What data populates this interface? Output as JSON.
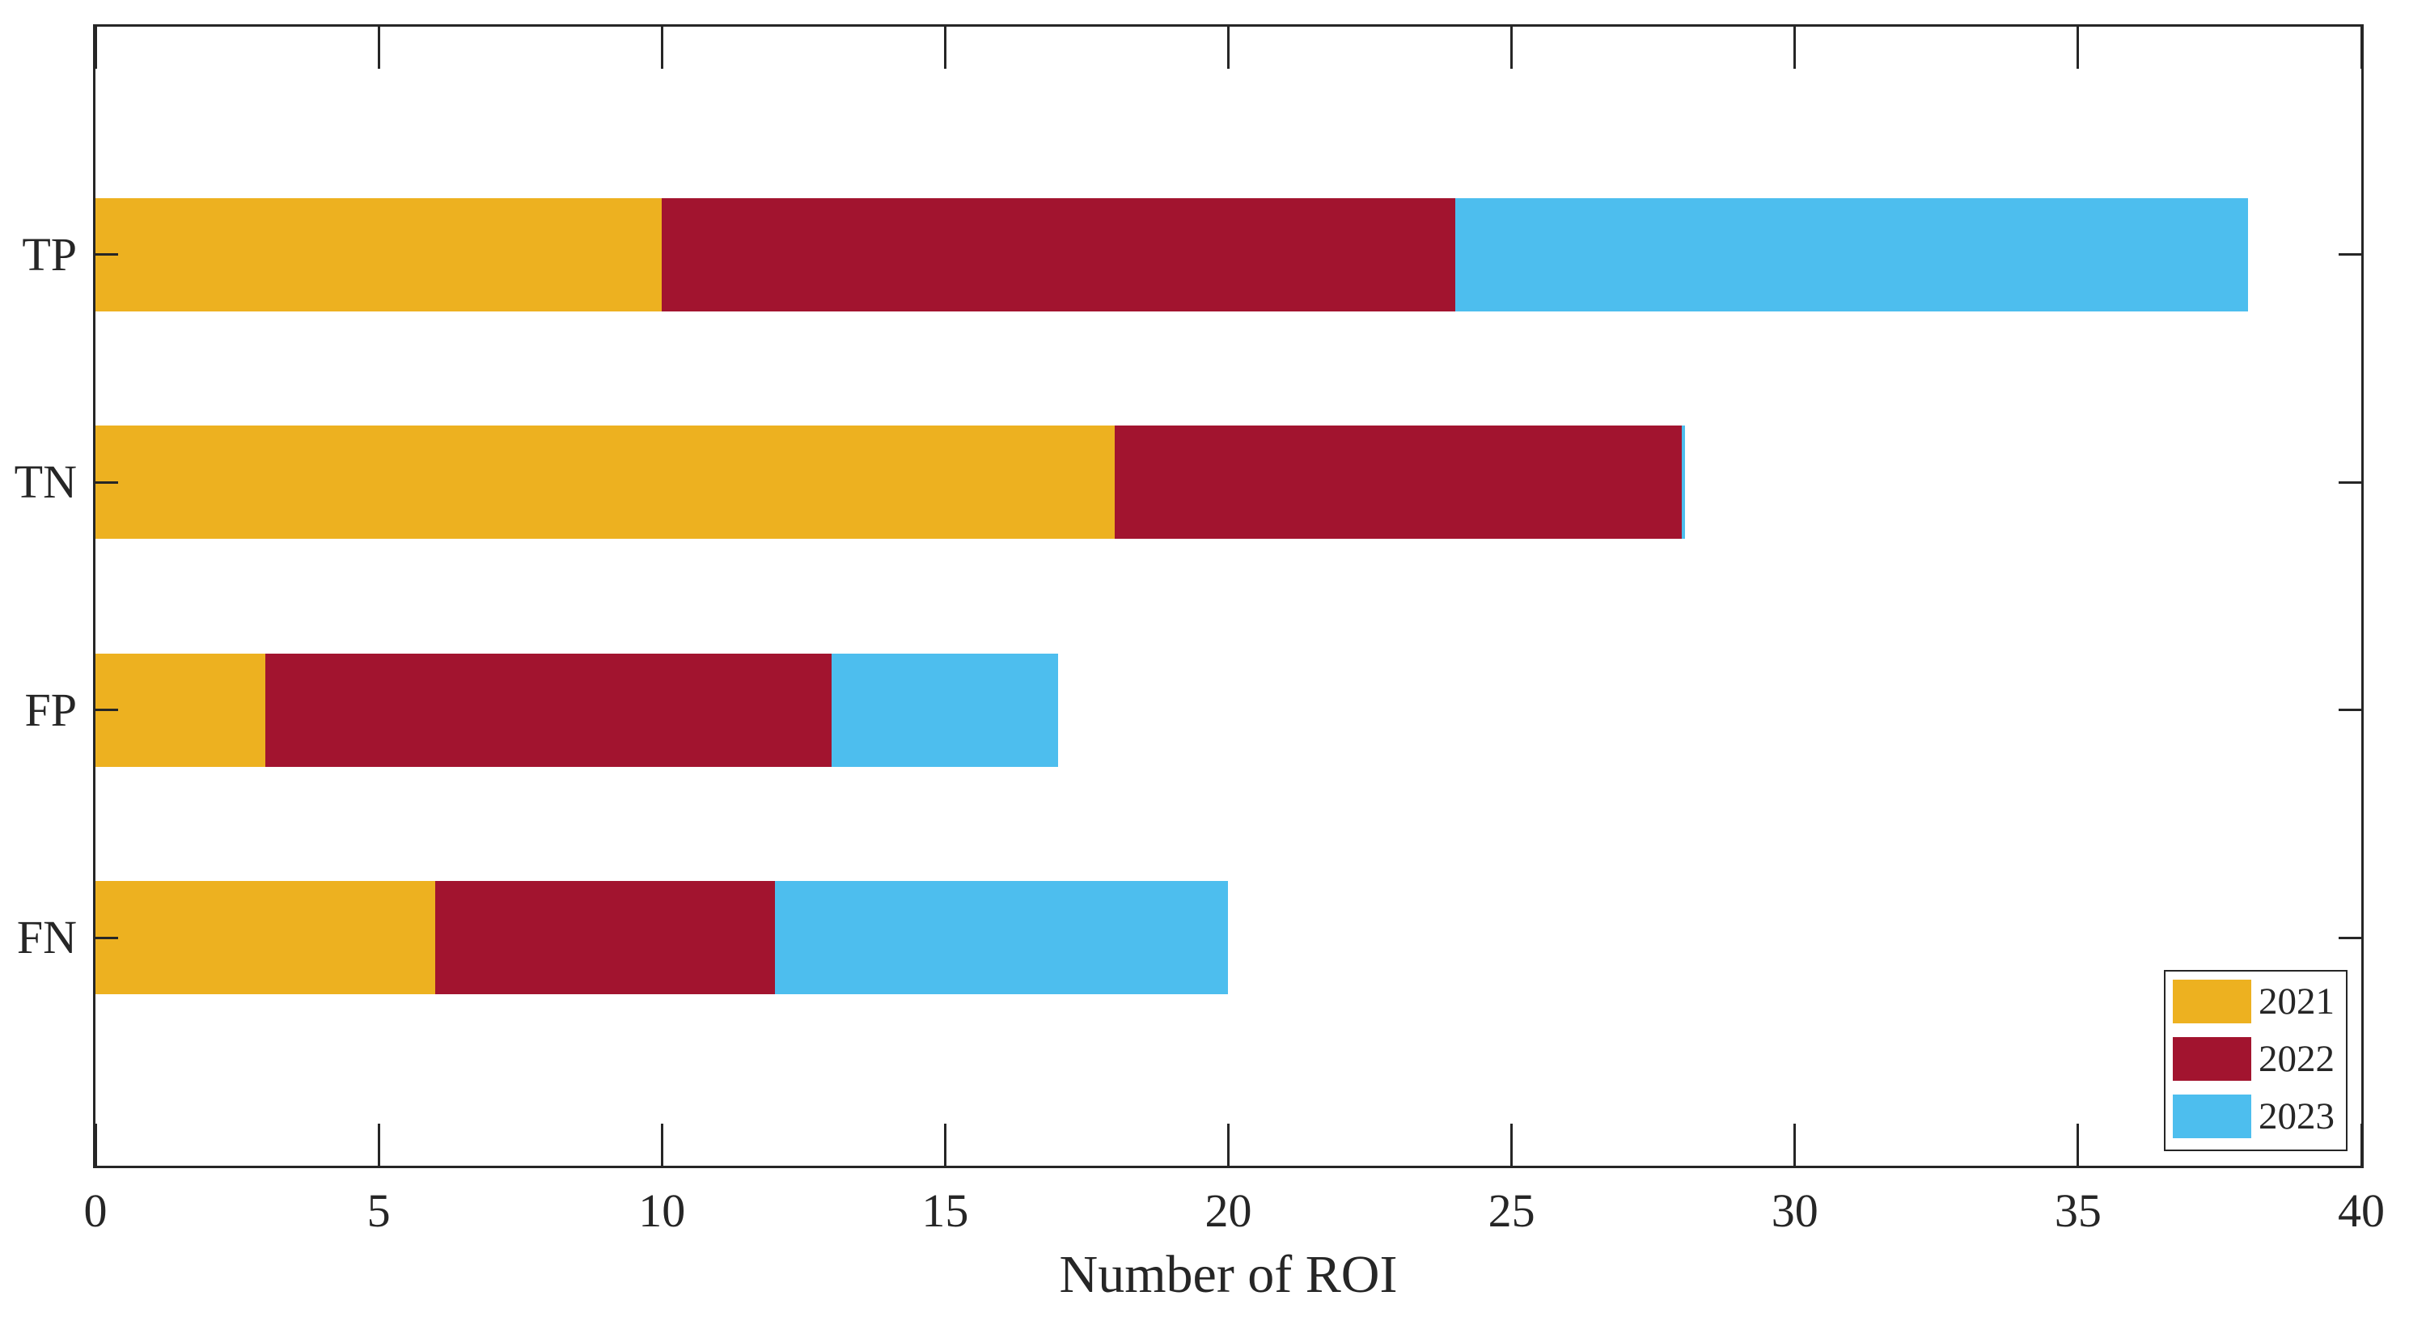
{
  "figure": {
    "background": "#ffffff",
    "axis_color": "#262626",
    "text_color": "#262626"
  },
  "chart_data": {
    "type": "bar",
    "orientation": "horizontal",
    "stacked": true,
    "title": "",
    "xlabel": "Number of ROI",
    "ylabel": "",
    "categories": [
      "TP",
      "TN",
      "FP",
      "FN"
    ],
    "series": [
      {
        "name": "2021",
        "color": "#EDB120",
        "values": [
          10,
          18,
          3,
          6
        ]
      },
      {
        "name": "2022",
        "color": "#A2142F",
        "values": [
          14,
          10,
          10,
          6
        ]
      },
      {
        "name": "2023",
        "color": "#4DBEEE",
        "values": [
          14,
          0,
          4,
          8
        ]
      }
    ],
    "totals": [
      38,
      28,
      17,
      20
    ],
    "xlim": [
      0,
      40
    ],
    "xticks": [
      0,
      5,
      10,
      15,
      20,
      25,
      30,
      35,
      40
    ],
    "grid": false,
    "legend": {
      "position": "bottom-right",
      "entries": [
        "2021",
        "2022",
        "2023"
      ]
    }
  }
}
